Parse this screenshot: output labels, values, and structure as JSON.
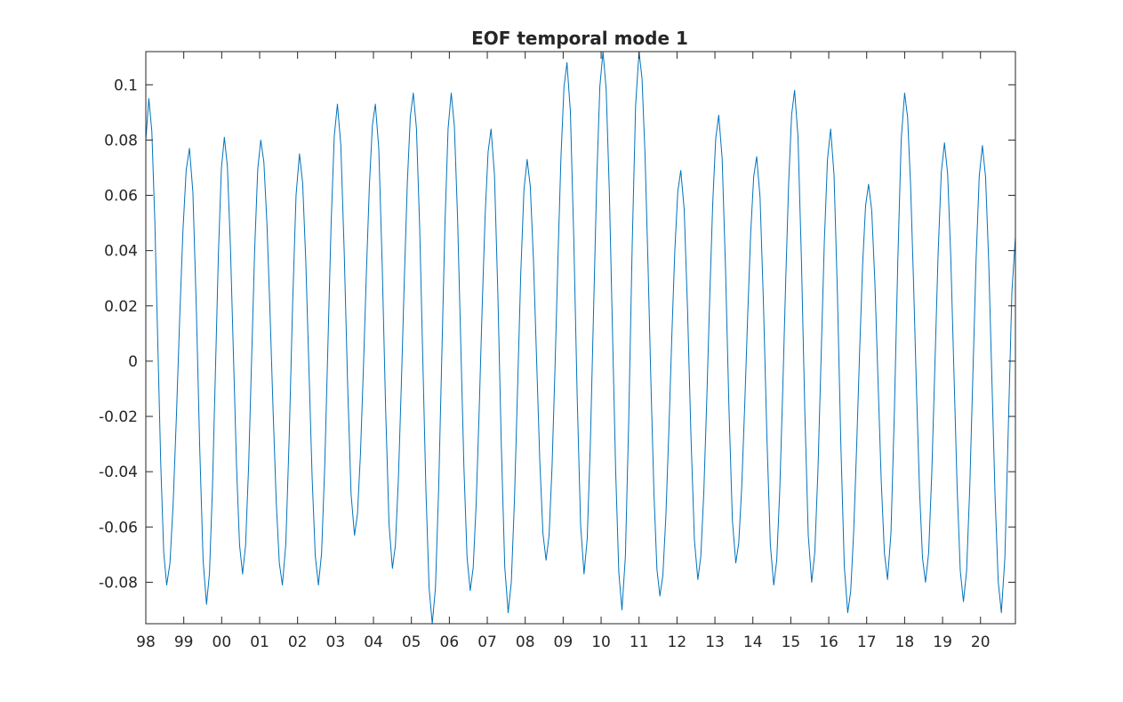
{
  "chart_data": {
    "type": "line",
    "title": "EOF temporal mode 1",
    "xlabel": "",
    "ylabel": "",
    "x_unit": "year (1998-2020)",
    "xlim": [
      1998.0,
      2020.92
    ],
    "ylim": [
      -0.095,
      0.112
    ],
    "xticks": [
      1998,
      1999,
      2000,
      2001,
      2002,
      2003,
      2004,
      2005,
      2006,
      2007,
      2008,
      2009,
      2010,
      2011,
      2012,
      2013,
      2014,
      2015,
      2016,
      2017,
      2018,
      2019,
      2020
    ],
    "xtick_labels": [
      "98",
      "99",
      "00",
      "01",
      "02",
      "03",
      "04",
      "05",
      "06",
      "07",
      "08",
      "09",
      "10",
      "11",
      "12",
      "13",
      "14",
      "15",
      "16",
      "17",
      "18",
      "19",
      "20"
    ],
    "yticks": [
      -0.08,
      -0.06,
      -0.04,
      -0.02,
      0,
      0.02,
      0.04,
      0.06,
      0.08,
      0.1
    ],
    "ytick_labels": [
      "-0.08",
      "-0.06",
      "-0.04",
      "-0.02",
      "0",
      "0.02",
      "0.04",
      "0.06",
      "0.08",
      "0.1"
    ],
    "grid": false,
    "box": true,
    "line_color": "#0072BD",
    "series": [
      {
        "cycles": [
          {
            "peak_x": 1998.08,
            "peak": 0.095,
            "trough_x": 1998.55,
            "trough": -0.081
          },
          {
            "peak_x": 1999.15,
            "peak": 0.077,
            "trough_x": 1999.6,
            "trough": -0.088
          },
          {
            "peak_x": 2000.07,
            "peak": 0.081,
            "trough_x": 2000.55,
            "trough": -0.077
          },
          {
            "peak_x": 2001.03,
            "peak": 0.08,
            "trough_x": 2001.6,
            "trough": -0.081
          },
          {
            "peak_x": 2002.05,
            "peak": 0.075,
            "trough_x": 2002.55,
            "trough": -0.081
          },
          {
            "peak_x": 2003.05,
            "peak": 0.093,
            "trough_x": 2003.5,
            "trough": -0.063
          },
          {
            "peak_x": 2004.05,
            "peak": 0.093,
            "trough_x": 2004.5,
            "trough": -0.075
          },
          {
            "peak_x": 2005.05,
            "peak": 0.097,
            "trough_x": 2005.55,
            "trough": -0.095
          },
          {
            "peak_x": 2006.05,
            "peak": 0.097,
            "trough_x": 2006.55,
            "trough": -0.083
          },
          {
            "peak_x": 2007.1,
            "peak": 0.084,
            "trough_x": 2007.55,
            "trough": -0.091
          },
          {
            "peak_x": 2008.05,
            "peak": 0.073,
            "trough_x": 2008.55,
            "trough": -0.072
          },
          {
            "peak_x": 2009.1,
            "peak": 0.108,
            "trough_x": 2009.55,
            "trough": -0.077
          },
          {
            "peak_x": 2010.05,
            "peak": 0.112,
            "trough_x": 2010.55,
            "trough": -0.09
          },
          {
            "peak_x": 2011.0,
            "peak": 0.112,
            "trough_x": 2011.55,
            "trough": -0.085
          },
          {
            "peak_x": 2012.1,
            "peak": 0.069,
            "trough_x": 2012.55,
            "trough": -0.079
          },
          {
            "peak_x": 2013.1,
            "peak": 0.089,
            "trough_x": 2013.55,
            "trough": -0.073
          },
          {
            "peak_x": 2014.1,
            "peak": 0.074,
            "trough_x": 2014.55,
            "trough": -0.081
          },
          {
            "peak_x": 2015.1,
            "peak": 0.098,
            "trough_x": 2015.55,
            "trough": -0.08
          },
          {
            "peak_x": 2016.05,
            "peak": 0.084,
            "trough_x": 2016.5,
            "trough": -0.091
          },
          {
            "peak_x": 2017.05,
            "peak": 0.064,
            "trough_x": 2017.55,
            "trough": -0.079
          },
          {
            "peak_x": 2018.0,
            "peak": 0.097,
            "trough_x": 2018.55,
            "trough": -0.08
          },
          {
            "peak_x": 2019.05,
            "peak": 0.079,
            "trough_x": 2019.55,
            "trough": -0.087
          },
          {
            "peak_x": 2020.05,
            "peak": 0.078,
            "trough_x": 2020.55,
            "trough": -0.091
          }
        ],
        "start": {
          "x": 1998.0,
          "y": 0.08
        },
        "end": {
          "x": 2020.92,
          "y": 0.045
        }
      }
    ]
  }
}
